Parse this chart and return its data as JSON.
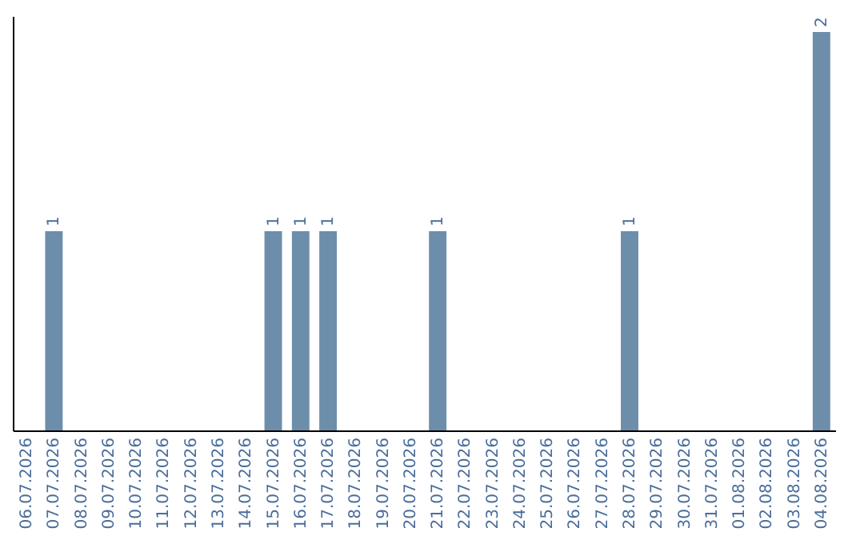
{
  "chart_data": {
    "type": "bar",
    "categories": [
      "06.07.2026",
      "07.07.2026",
      "08.07.2026",
      "09.07.2026",
      "10.07.2026",
      "11.07.2026",
      "12.07.2026",
      "13.07.2026",
      "14.07.2026",
      "15.07.2026",
      "16.07.2026",
      "17.07.2026",
      "18.07.2026",
      "19.07.2026",
      "20.07.2026",
      "21.07.2026",
      "22.07.2026",
      "23.07.2026",
      "24.07.2026",
      "25.07.2026",
      "26.07.2026",
      "27.07.2026",
      "28.07.2026",
      "29.07.2026",
      "30.07.2026",
      "31.07.2026",
      "01.08.2026",
      "02.08.2026",
      "03.08.2026",
      "04.08.2026"
    ],
    "values": [
      0,
      1,
      0,
      0,
      0,
      0,
      0,
      0,
      0,
      1,
      1,
      1,
      0,
      0,
      0,
      1,
      0,
      0,
      0,
      0,
      0,
      0,
      1,
      0,
      0,
      0,
      0,
      0,
      0,
      2
    ],
    "value_labels": [
      null,
      "1",
      null,
      null,
      null,
      null,
      null,
      null,
      null,
      "1",
      "1",
      "1",
      null,
      null,
      null,
      "1",
      null,
      null,
      null,
      null,
      null,
      null,
      "1",
      null,
      null,
      null,
      null,
      null,
      null,
      "2"
    ],
    "color": "#6d8eab",
    "ylim": [
      0,
      2.08
    ],
    "grid": false
  }
}
